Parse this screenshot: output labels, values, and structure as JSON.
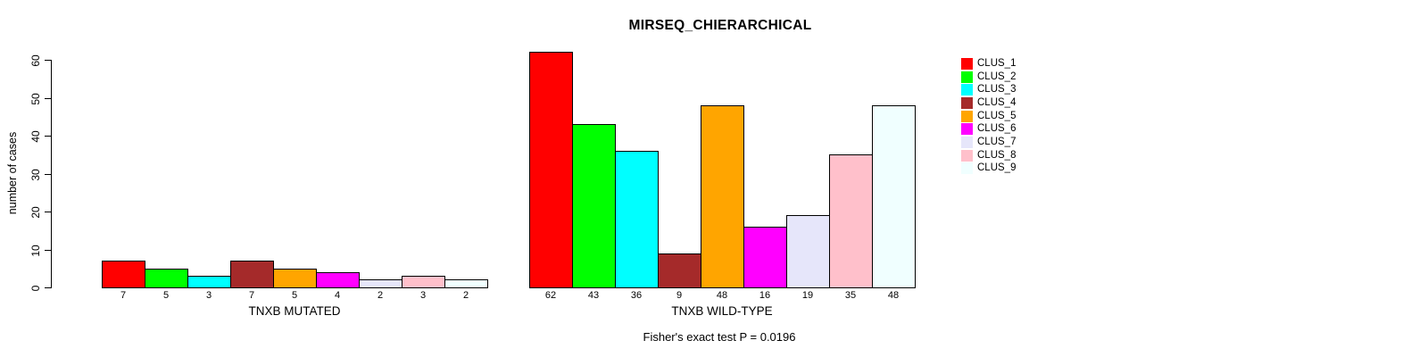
{
  "title": "MIRSEQ_CHIERARCHICAL",
  "footer": "Fisher's exact test P = 0.0196",
  "y_axis": {
    "label": "number of cases",
    "ticks": [
      0,
      10,
      20,
      30,
      40,
      50,
      60
    ]
  },
  "legend": {
    "items": [
      {
        "label": "CLUS_1",
        "color": "#FF0000"
      },
      {
        "label": "CLUS_2",
        "color": "#00FF00"
      },
      {
        "label": "CLUS_3",
        "color": "#00FFFF"
      },
      {
        "label": "CLUS_4",
        "color": "#A52A2A"
      },
      {
        "label": "CLUS_5",
        "color": "#FFA500"
      },
      {
        "label": "CLUS_6",
        "color": "#FF00FF"
      },
      {
        "label": "CLUS_7",
        "color": "#E6E6FA"
      },
      {
        "label": "CLUS_8",
        "color": "#FFC0CB"
      },
      {
        "label": "CLUS_9",
        "color": "#F0FFFF"
      }
    ]
  },
  "chart_data": {
    "type": "bar",
    "title": "MIRSEQ_CHIERARCHICAL",
    "xlabel": "",
    "ylabel": "number of cases",
    "ylim": [
      0,
      62
    ],
    "yticks": [
      0,
      10,
      20,
      30,
      40,
      50,
      60
    ],
    "grid": false,
    "legend_position": "right",
    "bar_border_color": "#000000",
    "series_labels": [
      "CLUS_1",
      "CLUS_2",
      "CLUS_3",
      "CLUS_4",
      "CLUS_5",
      "CLUS_6",
      "CLUS_7",
      "CLUS_8",
      "CLUS_9"
    ],
    "series_colors": [
      "#FF0000",
      "#00FF00",
      "#00FFFF",
      "#A52A2A",
      "#FFA500",
      "#FF00FF",
      "#E6E6FA",
      "#FFC0CB",
      "#F0FFFF"
    ],
    "categories": [
      "TNXB MUTATED",
      "TNXB WILD-TYPE"
    ],
    "groups": [
      {
        "label": "TNXB MUTATED",
        "values": [
          7,
          5,
          3,
          7,
          5,
          4,
          2,
          3,
          2
        ]
      },
      {
        "label": "TNXB WILD-TYPE",
        "values": [
          62,
          43,
          36,
          9,
          48,
          16,
          19,
          35,
          48
        ]
      }
    ],
    "annotation": "Fisher's exact test P = 0.0196"
  }
}
